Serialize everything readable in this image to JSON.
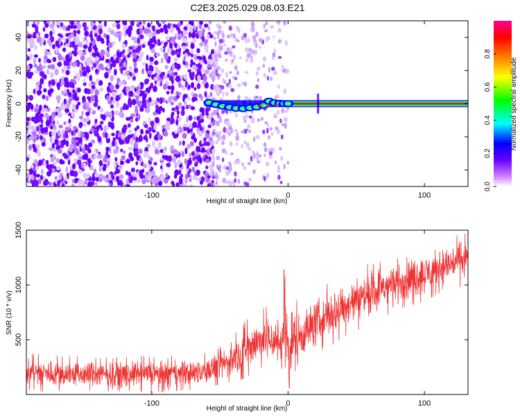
{
  "figure_title": "C2E3.2025.029.08.03.E21",
  "chart_data": [
    {
      "type": "heatmap",
      "title": "",
      "xlabel": "Height of straight line (km)",
      "ylabel": "Frequency (Hz)",
      "xlim": [
        -192,
        132
      ],
      "ylim": [
        -50,
        50
      ],
      "xticks": [
        -100,
        0,
        100
      ],
      "yticks": [
        -40,
        -20,
        0,
        20,
        40
      ],
      "colorbar": {
        "label": "Normalized spectral amplitude",
        "range": [
          0,
          1
        ],
        "ticks": [
          0.0,
          0.2,
          0.4,
          0.6,
          0.8
        ],
        "colormap": [
          "#ffffff",
          "#d080ff",
          "#6a00ff",
          "#0000ff",
          "#00ffff",
          "#00ff00",
          "#ffff00",
          "#ff8000",
          "#ff0000",
          "#ff0090"
        ]
      },
      "features": {
        "noise_region_x": [
          -192,
          -55
        ],
        "sparse_noise_x": [
          -55,
          0
        ],
        "signal_line_frequency": 0,
        "signal_start_x": -60,
        "vertical_spike_x": 22,
        "signal_line_color": "#ff0000"
      }
    },
    {
      "type": "line",
      "title": "",
      "xlabel": "Height of straight line (km)",
      "ylabel": "SNR (10 * v/v)",
      "xlim": [
        -192,
        132
      ],
      "ylim": [
        0,
        1500
      ],
      "xticks": [
        -100,
        0,
        100
      ],
      "yticks": [
        500,
        1000,
        1500
      ],
      "series": [
        {
          "color": "#ee3333",
          "x": [
            -192,
            -170,
            -150,
            -130,
            -110,
            -90,
            -70,
            -60,
            -50,
            -40,
            -30,
            -20,
            -10,
            -5,
            -3,
            0,
            10,
            20,
            40,
            60,
            80,
            100,
            120,
            132
          ],
          "upper": [
            380,
            360,
            350,
            340,
            350,
            360,
            360,
            380,
            450,
            550,
            700,
            800,
            800,
            780,
            1140,
            900,
            850,
            950,
            1100,
            1200,
            1300,
            1350,
            1450,
            1500
          ],
          "lower": [
            30,
            20,
            20,
            20,
            20,
            20,
            30,
            40,
            80,
            100,
            150,
            200,
            200,
            150,
            100,
            30,
            250,
            350,
            500,
            650,
            750,
            850,
            950,
            1000
          ]
        }
      ]
    }
  ]
}
